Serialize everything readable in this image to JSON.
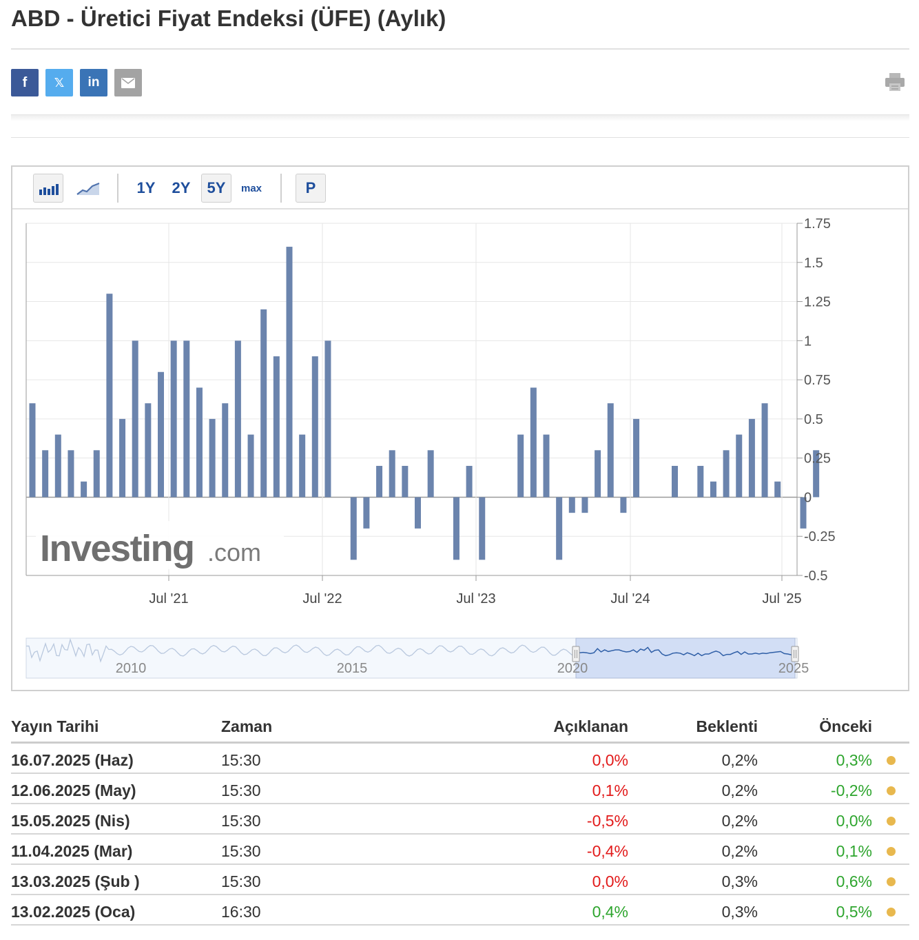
{
  "page": {
    "title": "ABD - Üretici Fiyat Endeksi (ÜFE) (Aylık)"
  },
  "share": {
    "facebook_label": "f",
    "twitter_label": "𝕏",
    "linkedin_label": "in"
  },
  "toolbar": {
    "ranges": [
      "1Y",
      "2Y",
      "5Y",
      "max"
    ],
    "active_range": "5Y",
    "p_label": "P"
  },
  "chart_data": {
    "type": "bar",
    "watermark": "Investing",
    "watermark_suffix": ".com",
    "ylim": [
      -0.5,
      1.75
    ],
    "y_ticks": [
      "1.75",
      "1.5",
      "1.25",
      "1",
      "0.75",
      "0.5",
      "0.25",
      "0",
      "-0.25",
      "-0.5"
    ],
    "x_ticks": [
      "Jul '21",
      "Jul '22",
      "Jul '23",
      "Jul '24",
      "Jul '25"
    ],
    "bar_color": "#6b84ad",
    "values": [
      0.6,
      0.3,
      0.4,
      0.3,
      0.1,
      0.3,
      1.3,
      0.5,
      1.0,
      0.6,
      0.8,
      1.0,
      1.0,
      0.7,
      0.5,
      0.6,
      1.0,
      0.4,
      1.2,
      0.9,
      1.6,
      0.4,
      0.9,
      1.0,
      0.0,
      -0.4,
      -0.2,
      0.2,
      0.3,
      0.2,
      -0.2,
      0.3,
      0.0,
      -0.4,
      0.2,
      -0.4,
      0.0,
      0.0,
      0.4,
      0.7,
      0.4,
      -0.4,
      -0.1,
      -0.1,
      0.3,
      0.6,
      -0.1,
      0.5,
      0.0,
      0.0,
      0.2,
      0.0,
      0.2,
      0.1,
      0.3,
      0.4,
      0.5,
      0.6,
      0.1,
      0.0,
      -0.2,
      0.3
    ],
    "navigator_ticks": [
      "2010",
      "2015",
      "2020",
      "2025"
    ]
  },
  "table": {
    "headers": {
      "date": "Yayın Tarihi",
      "time": "Zaman",
      "actual": "Açıklanan",
      "forecast": "Beklenti",
      "previous": "Önceki"
    },
    "rows": [
      {
        "date": "16.07.2025 (Haz)",
        "time": "15:30",
        "actual": "0,0%",
        "forecast": "0,2%",
        "previous": "0,3%",
        "actual_color": "neg",
        "previous_color": "pos"
      },
      {
        "date": "12.06.2025 (May)",
        "time": "15:30",
        "actual": "0,1%",
        "forecast": "0,2%",
        "previous": "-0,2%",
        "actual_color": "neg",
        "previous_color": "pos"
      },
      {
        "date": "15.05.2025 (Nis)",
        "time": "15:30",
        "actual": "-0,5%",
        "forecast": "0,2%",
        "previous": "0,0%",
        "actual_color": "neg",
        "previous_color": "pos"
      },
      {
        "date": "11.04.2025 (Mar)",
        "time": "15:30",
        "actual": "-0,4%",
        "forecast": "0,2%",
        "previous": "0,1%",
        "actual_color": "neg",
        "previous_color": "pos"
      },
      {
        "date": "13.03.2025 (Şub )",
        "time": "15:30",
        "actual": "0,0%",
        "forecast": "0,3%",
        "previous": "0,6%",
        "actual_color": "neg",
        "previous_color": "pos"
      },
      {
        "date": "13.02.2025 (Oca)",
        "time": "16:30",
        "actual": "0,4%",
        "forecast": "0,3%",
        "previous": "0,5%",
        "actual_color": "pos",
        "previous_color": "pos"
      }
    ]
  }
}
